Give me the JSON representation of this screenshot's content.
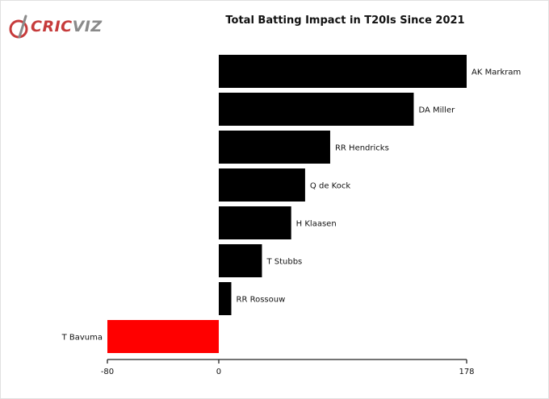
{
  "brand": {
    "part1": "CRIC",
    "part2": "VIZ"
  },
  "chart_data": {
    "type": "bar",
    "orientation": "horizontal",
    "title": "Total Batting Impact in T20Is Since 2021",
    "categories": [
      "AK Markram",
      "DA Miller",
      "RR Hendricks",
      "Q de Kock",
      "H Klaasen",
      "T Stubbs",
      "RR Rossouw",
      "T Bavuma"
    ],
    "values": [
      178,
      140,
      80,
      62,
      52,
      31,
      9,
      -80
    ],
    "colors": [
      "#000000",
      "#000000",
      "#000000",
      "#000000",
      "#000000",
      "#000000",
      "#000000",
      "#ff0000"
    ],
    "xlim": [
      -80,
      178
    ],
    "xticks": [
      -80,
      0,
      178
    ],
    "xlabel": "",
    "ylabel": "",
    "grid": false,
    "legend": "none"
  }
}
